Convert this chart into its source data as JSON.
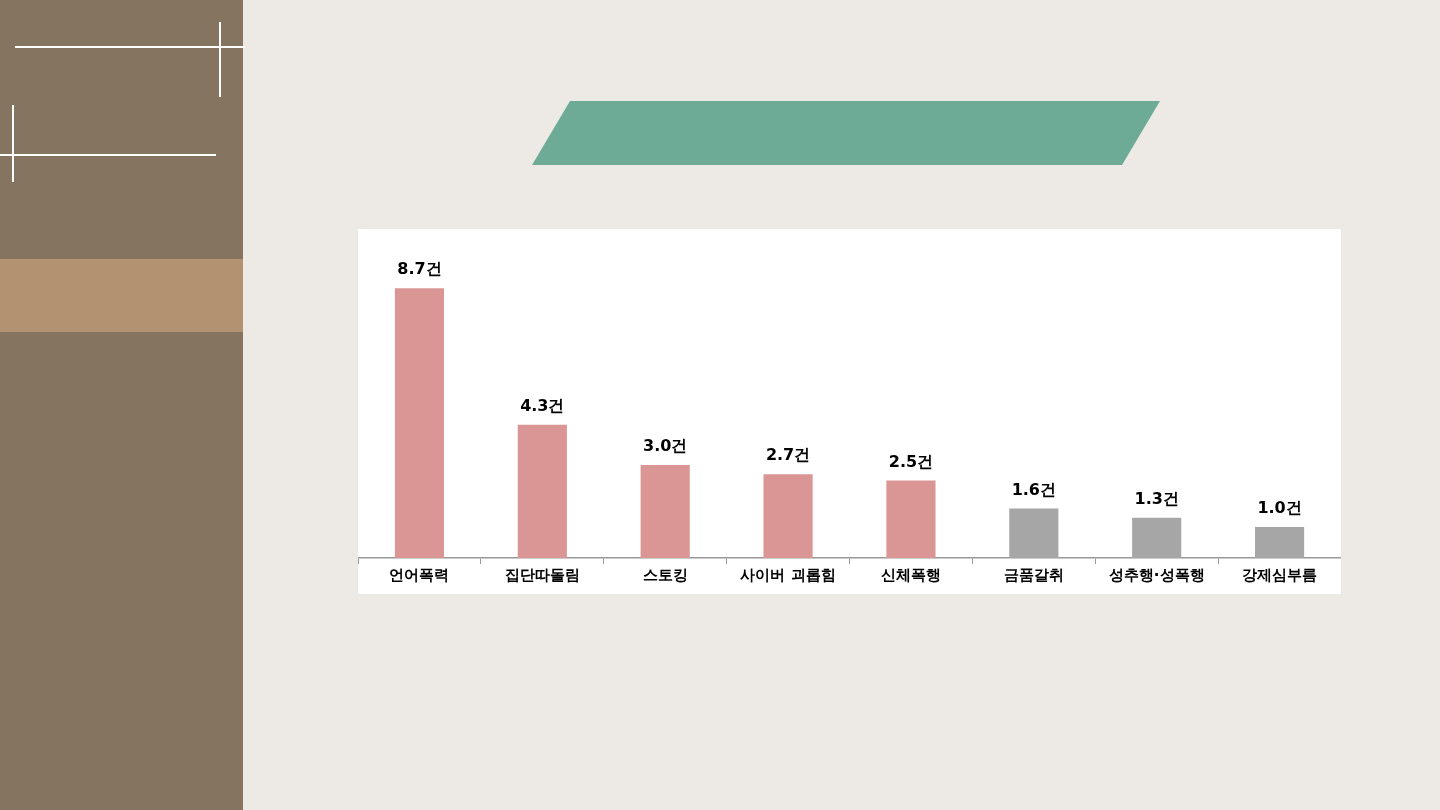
{
  "chart_data": {
    "type": "bar",
    "categories": [
      "언어폭력",
      "집단따돌림",
      "스토킹",
      "사이버 괴롭힘",
      "신체폭행",
      "금품갈취",
      "성추행·성폭행",
      "강제심부름"
    ],
    "values": [
      8.7,
      4.3,
      3.0,
      2.7,
      2.5,
      1.6,
      1.3,
      1.0
    ],
    "colors": [
      "#d99694",
      "#d99694",
      "#d99694",
      "#d99694",
      "#d99694",
      "#a6a6a6",
      "#a6a6a6",
      "#a6a6a6"
    ],
    "value_labels": [
      "8.7건",
      "4.3건",
      "3.0건",
      "2.7건",
      "2.5건",
      "1.6건",
      "1.3건",
      "1.0건"
    ],
    "grid": false,
    "legend": false
  }
}
